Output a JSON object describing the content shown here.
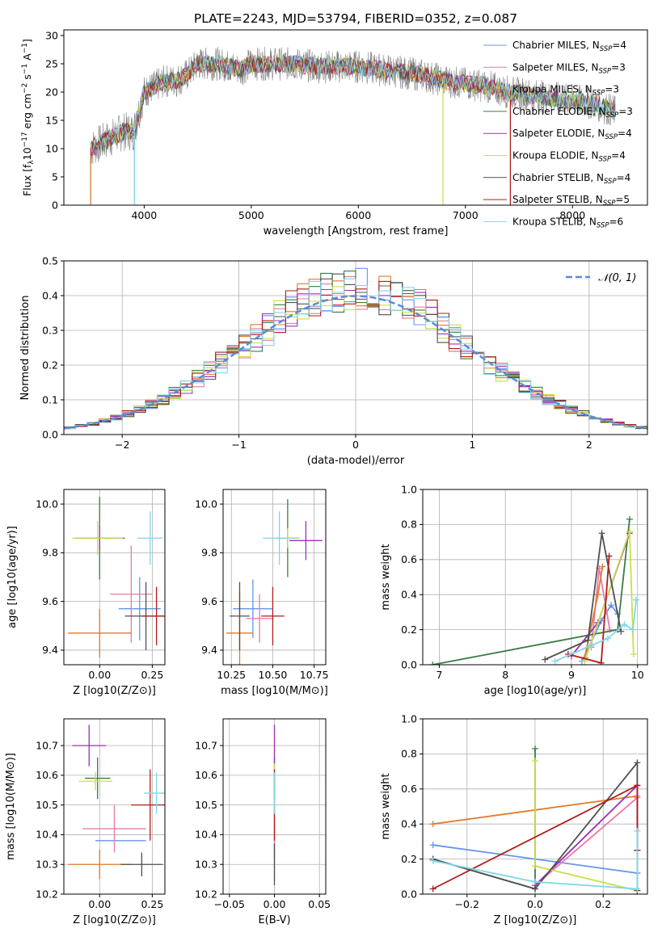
{
  "figure_title": "PLATE=2243, MJD=53794, FIBERID=0352, z=0.087",
  "series": [
    {
      "name": "Chabrier MILES, N_SSP=4",
      "label_main": "Chabrier MILES, N",
      "label_sub": "SSP",
      "label_tail": "=4",
      "color": "#6495ed"
    },
    {
      "name": "Salpeter MILES, N_SSP=3",
      "label_main": "Salpeter MILES, N",
      "label_sub": "SSP",
      "label_tail": "=3",
      "color": "#e879a8"
    },
    {
      "name": "Kroupa MILES, N_SSP=3",
      "label_main": "Kroupa MILES, N",
      "label_sub": "SSP",
      "label_tail": "=3",
      "color": "#e07a2a"
    },
    {
      "name": "Chabrier ELODIE, N_SSP=3",
      "label_main": "Chabrier ELODIE, N",
      "label_sub": "SSP",
      "label_tail": "=3",
      "color": "#3a7d44"
    },
    {
      "name": "Salpeter ELODIE, N_SSP=4",
      "label_main": "Salpeter ELODIE, N",
      "label_sub": "SSP",
      "label_tail": "=4",
      "color": "#9b30b8"
    },
    {
      "name": "Kroupa ELODIE, N_SSP=4",
      "label_main": "Kroupa ELODIE, N",
      "label_sub": "SSP",
      "label_tail": "=4",
      "color": "#c8e04a"
    },
    {
      "name": "Chabrier STELIB, N_SSP=4",
      "label_main": "Chabrier STELIB, N",
      "label_sub": "SSP",
      "label_tail": "=4",
      "color": "#505050"
    },
    {
      "name": "Salpeter STELIB, N_SSP=5",
      "label_main": "Salpeter STELIB, N",
      "label_sub": "SSP",
      "label_tail": "=5",
      "color": "#b01c1c"
    },
    {
      "name": "Kroupa STELIB, N_SSP=6",
      "label_main": "Kroupa STELIB, N",
      "label_sub": "SSP",
      "label_tail": "=6",
      "color": "#7fd8e8"
    }
  ],
  "chart_data": [
    {
      "id": "spectrum",
      "type": "line",
      "xlabel": "wavelength [Angstrom, rest frame]",
      "ylabel": "Flux [f_λ 10^-17 erg cm^-2 s^-1 A^-1]",
      "xlim": [
        3250,
        8700
      ],
      "ylim": [
        0,
        31
      ],
      "xticks": [
        "4000",
        "5000",
        "6000",
        "7000",
        "8000"
      ],
      "yticks": [
        "0",
        "5",
        "10",
        "15",
        "20",
        "25",
        "30"
      ],
      "legend_position": "upper-right",
      "grid": false,
      "continuum_x": [
        3500,
        3600,
        3700,
        3800,
        3900,
        4000,
        4100,
        4200,
        4300,
        4400,
        4500,
        4600,
        4700,
        4800,
        4900,
        5000,
        5200,
        5400,
        5600,
        5800,
        6000,
        6200,
        6400,
        6600,
        6800,
        7000,
        7200,
        7400,
        7600,
        7800,
        8000,
        8200,
        8400
      ],
      "continuum_y": [
        10,
        11,
        12,
        13,
        13,
        20,
        21,
        22,
        22,
        23,
        25,
        25,
        25,
        24.5,
        24,
        25,
        25,
        25,
        24.5,
        24.5,
        24.5,
        24,
        23.5,
        23,
        22,
        21.5,
        21,
        20,
        19.5,
        19,
        18.5,
        18,
        16.5
      ]
    },
    {
      "id": "residuals",
      "type": "histogram",
      "xlabel": "(data-model)/error",
      "ylabel": "Normed distribution",
      "xlim": [
        -2.5,
        2.5
      ],
      "ylim": [
        0,
        0.5
      ],
      "xticks": [
        "−2",
        "−1",
        "0",
        "1",
        "2"
      ],
      "yticks": [
        "0.0",
        "0.1",
        "0.2",
        "0.3",
        "0.4",
        "0.5"
      ],
      "grid": true,
      "legend_position": "upper-right",
      "reference_label": "𝒩(0, 1)",
      "bin_width": 0.1
    },
    {
      "id": "age_vs_Z",
      "type": "errorbar",
      "xlabel": "Z [log10(Z/Z⊙)]",
      "ylabel": "age [log10(age/yr)]",
      "xlim": [
        -0.17,
        0.31
      ],
      "ylim": [
        9.34,
        10.06
      ],
      "xticks": [
        "0.00",
        "0.25"
      ],
      "yticks": [
        "9.4",
        "9.6",
        "9.8",
        "10.0"
      ],
      "grid": true,
      "points": [
        {
          "x": 0.19,
          "xerr": 0.1,
          "y": 9.57,
          "yerr": 0.13
        },
        {
          "x": 0.15,
          "xerr": 0.1,
          "y": 9.63,
          "yerr": 0.2
        },
        {
          "x": 0.0,
          "xerr": 0.15,
          "y": 9.47,
          "yerr": 0.1
        },
        {
          "x": 0.0,
          "xerr": 0.05,
          "y": 9.86,
          "yerr": 0.17
        },
        {
          "x": 0.0,
          "xerr": 0.12,
          "y": 9.86,
          "yerr": 0.05
        },
        {
          "x": -0.01,
          "xerr": 0.12,
          "y": 9.86,
          "yerr": 0.07
        },
        {
          "x": 0.22,
          "xerr": 0.1,
          "y": 9.54,
          "yerr": 0.14
        },
        {
          "x": 0.27,
          "xerr": 0.07,
          "y": 9.54,
          "yerr": 0.12
        },
        {
          "x": 0.24,
          "xerr": 0.06,
          "y": 9.86,
          "yerr": 0.11
        }
      ]
    },
    {
      "id": "age_vs_mass",
      "type": "errorbar",
      "xlabel": "mass [log10(M/M⊙)]",
      "ylabel": "",
      "xlim": [
        10.2,
        10.82
      ],
      "ylim": [
        9.34,
        10.06
      ],
      "xticks": [
        "10.25",
        "10.50",
        "10.75"
      ],
      "yticks": [
        "9.4",
        "9.6",
        "9.8",
        "10.0"
      ],
      "grid": true,
      "points": [
        {
          "x": 10.38,
          "xerr": 0.12,
          "y": 9.57,
          "yerr": 0.12
        },
        {
          "x": 10.42,
          "xerr": 0.08,
          "y": 9.53,
          "yerr": 0.1
        },
        {
          "x": 10.3,
          "xerr": 0.08,
          "y": 9.47,
          "yerr": 0.17
        },
        {
          "x": 10.59,
          "xerr": 0.07,
          "y": 9.86,
          "yerr": 0.16
        },
        {
          "x": 10.7,
          "xerr": 0.1,
          "y": 9.85,
          "yerr": 0.08
        },
        {
          "x": 10.59,
          "xerr": 0.07,
          "y": 9.86,
          "yerr": 0.04
        },
        {
          "x": 10.3,
          "xerr": 0.06,
          "y": 9.54,
          "yerr": 0.14
        },
        {
          "x": 10.5,
          "xerr": 0.07,
          "y": 9.54,
          "yerr": 0.12
        },
        {
          "x": 10.54,
          "xerr": 0.1,
          "y": 9.86,
          "yerr": 0.11
        }
      ]
    },
    {
      "id": "mass_weight_vs_age",
      "type": "line",
      "xlabel": "age [log10(age/yr)]",
      "ylabel": "mass weight",
      "xlim": [
        6.75,
        10.15
      ],
      "ylim": [
        0,
        1
      ],
      "xticks": [
        "7",
        "8",
        "9",
        "10"
      ],
      "yticks": [
        "0.0",
        "0.2",
        "0.4",
        "0.6",
        "0.8",
        "1.0"
      ],
      "grid": true,
      "lines": [
        {
          "x": [
            9.16,
            9.45,
            9.6,
            9.7
          ],
          "y": [
            0.02,
            0.25,
            0.34,
            0.29
          ]
        },
        {
          "x": [
            9.3,
            9.42,
            9.58
          ],
          "y": [
            0.1,
            0.55,
            0.2
          ]
        },
        {
          "x": [
            9.2,
            9.4,
            9.47
          ],
          "y": [
            0.04,
            0.4,
            0.56
          ]
        },
        {
          "x": [
            6.9,
            9.7,
            9.88
          ],
          "y": [
            0.0,
            0.2,
            0.83
          ]
        },
        {
          "x": [
            9.0,
            9.4,
            9.88
          ],
          "y": [
            0.05,
            0.24,
            0.75
          ]
        },
        {
          "x": [
            9.2,
            9.88,
            9.94
          ],
          "y": [
            0.02,
            0.76,
            0.06
          ]
        },
        {
          "x": [
            8.6,
            9.25,
            9.46,
            9.75
          ],
          "y": [
            0.03,
            0.14,
            0.75,
            0.19
          ]
        },
        {
          "x": [
            8.95,
            9.45,
            9.57
          ],
          "y": [
            0.06,
            0.01,
            0.62
          ]
        },
        {
          "x": [
            8.75,
            9.3,
            9.55,
            9.8,
            9.93,
            9.98
          ],
          "y": [
            0.02,
            0.11,
            0.15,
            0.23,
            0.2,
            0.37
          ]
        }
      ]
    },
    {
      "id": "mass_vs_Z",
      "type": "errorbar",
      "xlabel": "Z [log10(Z/Z⊙)]",
      "ylabel": "mass [log10(M/M⊙)]",
      "xlim": [
        -0.17,
        0.31
      ],
      "ylim": [
        10.2,
        10.79
      ],
      "xticks": [
        "0.00",
        "0.25"
      ],
      "yticks": [
        "10.2",
        "10.3",
        "10.4",
        "10.5",
        "10.6",
        "10.7"
      ],
      "grid": true,
      "points": [
        {
          "x": 0.1,
          "xerr": 0.12,
          "y": 10.38,
          "yerr": 0.0
        },
        {
          "x": 0.07,
          "xerr": 0.15,
          "y": 10.42,
          "yerr": 0.08
        },
        {
          "x": 0.0,
          "xerr": 0.15,
          "y": 10.3,
          "yerr": 0.05
        },
        {
          "x": -0.01,
          "xerr": 0.06,
          "y": 10.59,
          "yerr": 0.07
        },
        {
          "x": -0.05,
          "xerr": 0.08,
          "y": 10.7,
          "yerr": 0.07
        },
        {
          "x": -0.02,
          "xerr": 0.08,
          "y": 10.58,
          "yerr": 0.03
        },
        {
          "x": 0.2,
          "xerr": 0.1,
          "y": 10.3,
          "yerr": 0.04
        },
        {
          "x": 0.24,
          "xerr": 0.09,
          "y": 10.5,
          "yerr": 0.12
        },
        {
          "x": 0.27,
          "xerr": 0.06,
          "y": 10.54,
          "yerr": 0.07
        }
      ]
    },
    {
      "id": "mass_vs_EBV",
      "type": "errorbar",
      "xlabel": "E(B-V)",
      "ylabel": "",
      "xlim": [
        -0.057,
        0.057
      ],
      "ylim": [
        10.2,
        10.79
      ],
      "xticks": [
        "−0.05",
        "0.00",
        "0.05"
      ],
      "yticks": [
        "10.2",
        "10.3",
        "10.4",
        "10.5",
        "10.6",
        "10.7"
      ],
      "grid": true,
      "points": [
        {
          "x": 0,
          "xerr": 0,
          "y": 10.38,
          "yerr": 0.06
        },
        {
          "x": 0,
          "xerr": 0,
          "y": 10.42,
          "yerr": 0.08
        },
        {
          "x": 0,
          "xerr": 0,
          "y": 10.3,
          "yerr": 0.05
        },
        {
          "x": 0,
          "xerr": 0,
          "y": 10.59,
          "yerr": 0.07
        },
        {
          "x": 0,
          "xerr": 0,
          "y": 10.7,
          "yerr": 0.07
        },
        {
          "x": 0,
          "xerr": 0,
          "y": 10.58,
          "yerr": 0.06
        },
        {
          "x": 0,
          "xerr": 0,
          "y": 10.3,
          "yerr": 0.07
        },
        {
          "x": 0,
          "xerr": 0,
          "y": 10.5,
          "yerr": 0.12
        },
        {
          "x": 0,
          "xerr": 0,
          "y": 10.54,
          "yerr": 0.07
        }
      ]
    },
    {
      "id": "mass_weight_vs_Z",
      "type": "line",
      "xlabel": "Z [log10(Z/Z⊙)]",
      "ylabel": "mass weight",
      "xlim": [
        -0.33,
        0.33
      ],
      "ylim": [
        0,
        1
      ],
      "xticks": [
        "−0.2",
        "0.0",
        "0.2"
      ],
      "yticks": [
        "0.0",
        "0.2",
        "0.4",
        "0.6",
        "0.8",
        "1.0"
      ],
      "grid": true,
      "lines": [
        {
          "x": [
            -0.3,
            0.3
          ],
          "y": [
            0.28,
            0.12
          ]
        },
        {
          "x": [
            0.0,
            0.3,
            0.3
          ],
          "y": [
            0.05,
            0.55,
            0.25
          ]
        },
        {
          "x": [
            -0.3,
            0.3
          ],
          "y": [
            0.4,
            0.56
          ]
        },
        {
          "x": [
            -0.3,
            0.0,
            0.0
          ],
          "y": [
            0.2,
            0.03,
            0.83
          ]
        },
        {
          "x": [
            0.0,
            0.3,
            0.3
          ],
          "y": [
            0.05,
            0.62,
            0.25
          ]
        },
        {
          "x": [
            0.0,
            0.0,
            0.3
          ],
          "y": [
            0.76,
            0.16,
            0.02
          ]
        },
        {
          "x": [
            -0.3,
            0.0,
            0.3,
            0.3
          ],
          "y": [
            0.2,
            0.03,
            0.75,
            0.02
          ]
        },
        {
          "x": [
            -0.3,
            0.3,
            0.3
          ],
          "y": [
            0.03,
            0.62,
            0.25
          ]
        },
        {
          "x": [
            -0.3,
            0.0,
            0.3,
            0.3
          ],
          "y": [
            0.19,
            0.07,
            0.03,
            0.36
          ]
        }
      ]
    }
  ]
}
